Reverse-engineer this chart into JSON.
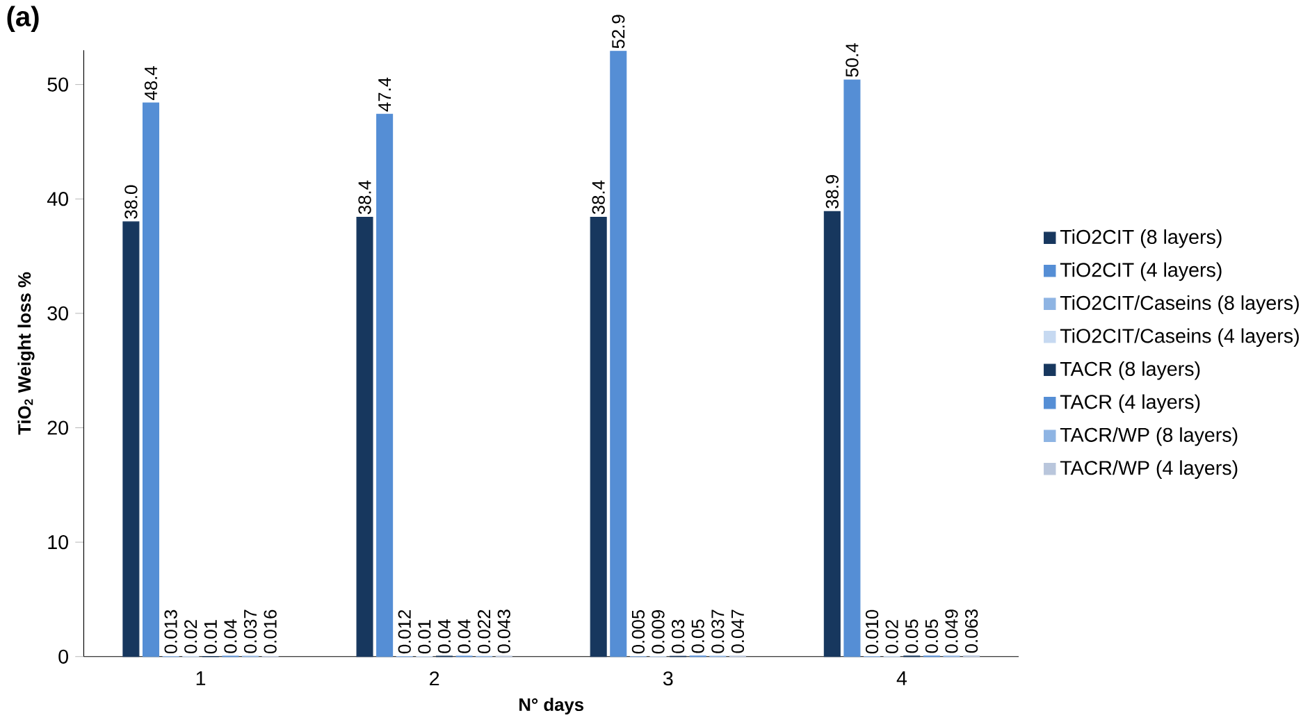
{
  "chart_data": {
    "type": "bar",
    "title": "(a)",
    "xlabel": "N° days",
    "ylabel": "TiO$_{2}$ Weight loss %",
    "categories": [
      "1",
      "2",
      "3",
      "4"
    ],
    "series": [
      {
        "name": "TiO2CIT (8 layers)",
        "color": "#17375e",
        "values": [
          38.0,
          38.4,
          38.4,
          38.9
        ],
        "value_labels": [
          "38.0",
          "38.4",
          "38.4",
          "38.9"
        ]
      },
      {
        "name": "TiO2CIT (4 layers)",
        "color": "#558ed5",
        "values": [
          48.4,
          47.4,
          52.9,
          50.4
        ],
        "value_labels": [
          "48.4",
          "47.4",
          "52.9",
          "50.4"
        ]
      },
      {
        "name": "TiO2CIT/Caseins (8 layers)",
        "color": "#8eb4e3",
        "values": [
          0.013,
          0.012,
          0.005,
          0.01
        ],
        "value_labels": [
          "0.013",
          "0.012",
          "0.005",
          "0.010"
        ]
      },
      {
        "name": "TiO2CIT/Caseins (4 layers)",
        "color": "#c6d9f1",
        "values": [
          0.02,
          0.01,
          0.009,
          0.02
        ],
        "value_labels": [
          "0.02",
          "0.01",
          "0.009",
          "0.02"
        ]
      },
      {
        "name": "TACR (8 layers)",
        "color": "#17375e",
        "values": [
          0.01,
          0.04,
          0.03,
          0.05
        ],
        "value_labels": [
          "0.01",
          "0.04",
          "0.03",
          "0.05"
        ]
      },
      {
        "name": "TACR (4 layers)",
        "color": "#558ed5",
        "values": [
          0.04,
          0.04,
          0.05,
          0.05
        ],
        "value_labels": [
          "0.04",
          "0.04",
          "0.05",
          "0.05"
        ]
      },
      {
        "name": "TACR/WP (8 layers)",
        "color": "#8eb4e3",
        "values": [
          0.037,
          0.022,
          0.037,
          0.049
        ],
        "value_labels": [
          "0.037",
          "0.022",
          "0.037",
          "0.049"
        ]
      },
      {
        "name": "TACR/WP (4 layers)",
        "color": "#b9c6dc",
        "values": [
          0.016,
          0.043,
          0.047,
          0.063
        ],
        "value_labels": [
          "0.016",
          "0.043",
          "0.047",
          "0.063"
        ]
      }
    ],
    "ylim": [
      0,
      53
    ],
    "yticks": [
      0,
      10,
      20,
      30,
      40,
      50
    ],
    "grid": false,
    "legend": "right"
  }
}
